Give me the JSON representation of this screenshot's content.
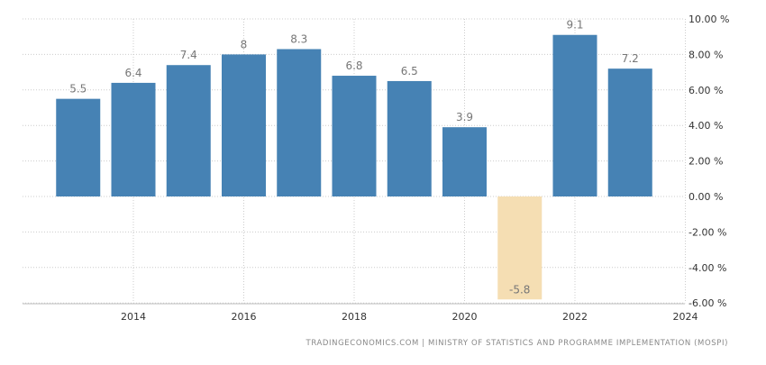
{
  "chart_data": {
    "type": "bar",
    "categories": [
      "2013",
      "2014",
      "2015",
      "2016",
      "2017",
      "2018",
      "2019",
      "2020",
      "2021",
      "2022",
      "2023"
    ],
    "values": [
      5.5,
      6.4,
      7.4,
      8,
      8.3,
      6.8,
      6.5,
      3.9,
      -5.8,
      9.1,
      7.2
    ],
    "data_labels": [
      "5.5",
      "6.4",
      "7.4",
      "8",
      "8.3",
      "6.8",
      "6.5",
      "3.9",
      "-5.8",
      "9.1",
      "7.2"
    ],
    "ylim": [
      -6,
      10
    ],
    "y_ticks": [
      10,
      8,
      6,
      4,
      2,
      0,
      -2,
      -4,
      -6
    ],
    "y_tick_labels": [
      "10.00 %",
      "8.00 %",
      "6.00 %",
      "4.00 %",
      "2.00 %",
      "0.00 %",
      "-2.00 %",
      "-4.00 %",
      "-6.00 %"
    ],
    "x_ticks": [
      2014,
      2016,
      2018,
      2020,
      2022,
      2024
    ],
    "x_tick_labels": [
      "2014",
      "2016",
      "2018",
      "2020",
      "2022",
      "2024"
    ],
    "y_axis_position": "right",
    "grid": true,
    "colors": {
      "positive": "#4682b4",
      "negative": "#f5deb3",
      "label": "#777777",
      "grid": "#cccccc",
      "axis_text": "#333333"
    }
  },
  "source_text": "TRADINGECONOMICS.COM | MINISTRY OF STATISTICS AND PROGRAMME IMPLEMENTATION (MOSPI)"
}
